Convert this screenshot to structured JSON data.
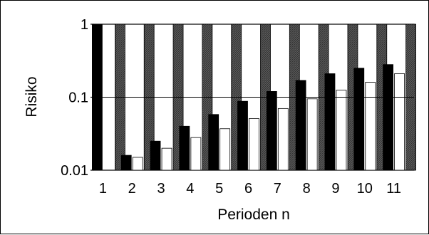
{
  "chart_data": {
    "type": "bar",
    "title": "",
    "xlabel": "Perioden n",
    "ylabel": "Risiko",
    "yscale": "log",
    "ylim": [
      0.01,
      1
    ],
    "yticks": [
      {
        "value": 0.01,
        "label": "0.01"
      },
      {
        "value": 0.1,
        "label": "0.1"
      },
      {
        "value": 1,
        "label": "1"
      }
    ],
    "reference_line": 0.1,
    "grid": false,
    "categories": [
      "1",
      "2",
      "3",
      "4",
      "5",
      "6",
      "7",
      "8",
      "9",
      "10",
      "11"
    ],
    "series": [
      {
        "values": [
          1,
          0.016,
          0.025,
          0.04,
          0.058,
          0.088,
          0.12,
          0.17,
          0.21,
          0.25,
          0.28
        ],
        "fill": "black"
      },
      {
        "values": [
          0.01,
          0.015,
          0.02,
          0.028,
          0.037,
          0.051,
          0.07,
          0.095,
          0.125,
          0.16,
          0.21
        ],
        "fill": "white"
      },
      {
        "values": [
          1,
          1,
          1,
          1,
          1,
          1,
          1,
          1,
          1,
          1,
          1
        ],
        "fill": "hatched"
      }
    ]
  }
}
